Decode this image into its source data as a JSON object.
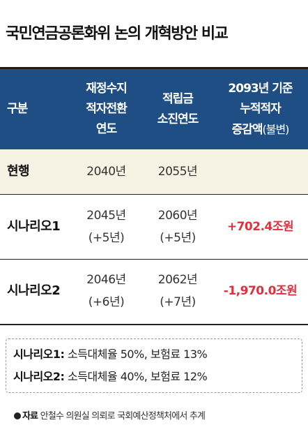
{
  "title": "국민연금공론화위 논의 개혁방안 비교",
  "header": {
    "col0": "구분",
    "col1_l1": "재정수지",
    "col1_l2": "적자전환",
    "col1_l3": "연도",
    "col2_l1": "적립금",
    "col2_l2": "소진연도",
    "col3_l1": "2093년 기준",
    "col3_l2": "누적적자",
    "col3_l3": "증감액",
    "col3_l3b": "(불변)"
  },
  "rows": [
    {
      "label": "현행",
      "deficit_year": "2040년",
      "deficit_delta": "",
      "depletion_year": "2055년",
      "depletion_delta": "",
      "change": ""
    },
    {
      "label": "시나리오1",
      "deficit_year": "2045년",
      "deficit_delta": "(+5년)",
      "depletion_year": "2060년",
      "depletion_delta": "(+5년)",
      "change": "+702.4조원"
    },
    {
      "label": "시나리오2",
      "deficit_year": "2046년",
      "deficit_delta": "(+6년)",
      "depletion_year": "2062년",
      "depletion_delta": "(+7년)",
      "change": "-1,970.0조원"
    }
  ],
  "notes": [
    {
      "key": "시나리오1:",
      "text": " 소득대체율 50%, 보험료 13%"
    },
    {
      "key": "시나리오2:",
      "text": " 소득대체율 40%, 보험료 12%"
    }
  ],
  "source": {
    "key": "자료",
    "text": " 안철수 의원실 의뢰로 국회예산정책처에서 추계"
  },
  "colors": {
    "header_bg": "#1f4e85",
    "highlight_row": "#f7f3e4",
    "negative_red": "#e0303e"
  }
}
